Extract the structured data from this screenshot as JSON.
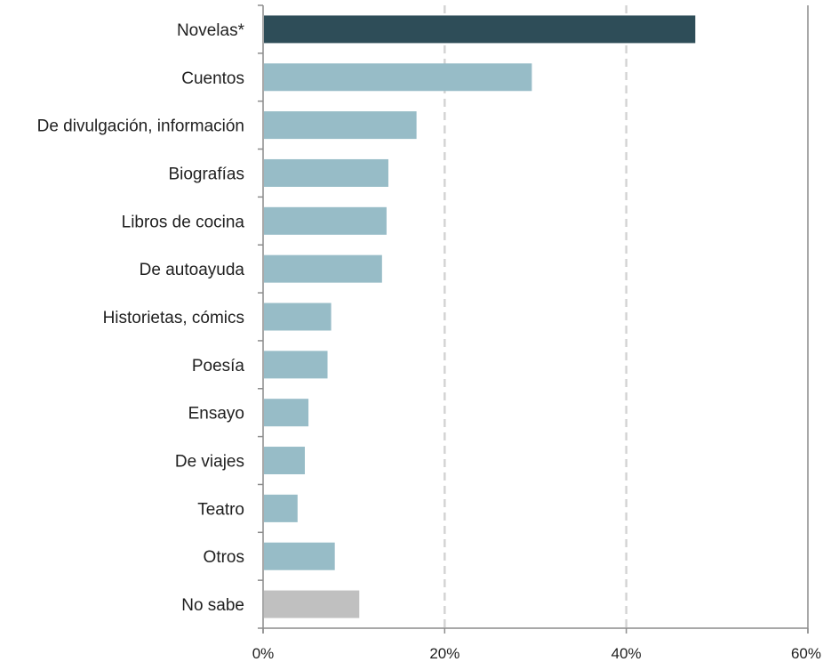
{
  "chart_data": {
    "type": "bar",
    "orientation": "horizontal",
    "categories": [
      "Novelas*",
      "Cuentos",
      "De divulgación, información",
      "Biografías",
      "Libros de cocina",
      "De autoayuda",
      "Historietas, cómics",
      "Poesía",
      "Ensayo",
      "De viajes",
      "Teatro",
      "Otros",
      "No sabe"
    ],
    "values": [
      47.5,
      29.5,
      16.8,
      13.7,
      13.5,
      13.0,
      7.4,
      7.0,
      4.9,
      4.5,
      3.7,
      7.8,
      10.5
    ],
    "colors": [
      "#2e4d58",
      "#97bcc7",
      "#97bcc7",
      "#97bcc7",
      "#97bcc7",
      "#97bcc7",
      "#97bcc7",
      "#97bcc7",
      "#97bcc7",
      "#97bcc7",
      "#97bcc7",
      "#97bcc7",
      "#c0c0c0"
    ],
    "xlim": [
      0,
      60
    ],
    "xticks": [
      0,
      20,
      40,
      60
    ],
    "xtick_labels": [
      "0%",
      "20%",
      "40%",
      "60%"
    ],
    "grid": "vertical dashed",
    "title": "",
    "xlabel": "",
    "ylabel": ""
  }
}
